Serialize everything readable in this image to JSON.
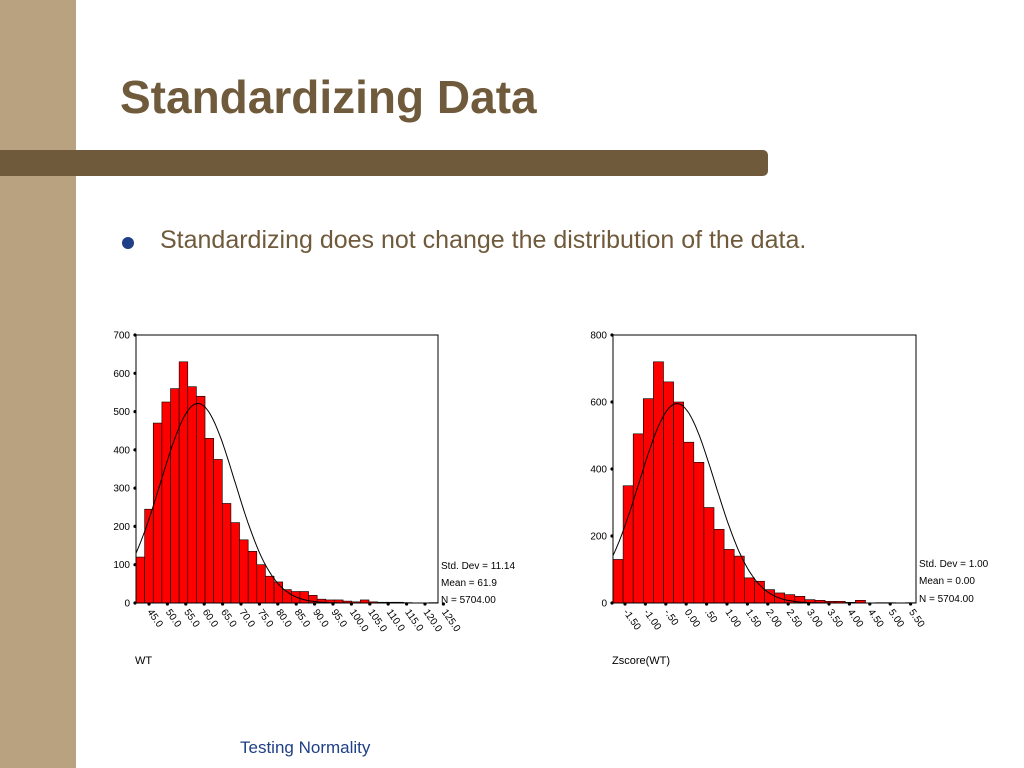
{
  "slide": {
    "title": "Standardizing Data",
    "bullet": "Standardizing does not change the distribution of the data.",
    "footer": "Testing Normality",
    "colors": {
      "left_bar": "#b9a27f",
      "accent": "#705a3c",
      "bullet": "#1f3f86",
      "bars": "#ff0000"
    }
  },
  "chart_data": [
    {
      "type": "bar",
      "subtype": "histogram",
      "xlabel": "WT",
      "ylim": [
        0,
        700
      ],
      "yticks": [
        0,
        100,
        200,
        300,
        400,
        500,
        600,
        700
      ],
      "xtick_labels": [
        "45.0",
        "50.0",
        "55.0",
        "60.0",
        "65.0",
        "70.0",
        "75.0",
        "80.0",
        "85.0",
        "90.0",
        "95.0",
        "100.0",
        "105.0",
        "110.0",
        "115.0",
        "120.0",
        "125.0"
      ],
      "values": [
        120,
        245,
        470,
        525,
        560,
        630,
        565,
        540,
        430,
        375,
        260,
        210,
        165,
        135,
        100,
        70,
        55,
        35,
        30,
        30,
        20,
        10,
        8,
        8,
        5,
        3,
        8,
        3,
        2,
        2,
        2,
        1,
        0,
        0,
        1
      ],
      "stats": [
        "Std. Dev = 11.14",
        "Mean = 61.9",
        "N = 5704.00"
      ],
      "normal_curve": true
    },
    {
      "type": "bar",
      "subtype": "histogram",
      "xlabel": "Zscore(WT)",
      "ylim": [
        0,
        800
      ],
      "yticks": [
        0,
        200,
        400,
        600,
        800
      ],
      "xtick_labels": [
        "-1.50",
        "-1.00",
        "-.50",
        "0.00",
        ".50",
        "1.00",
        "1.50",
        "2.00",
        "2.50",
        "3.00",
        "3.50",
        "4.00",
        "4.50",
        "5.00",
        "5.50"
      ],
      "values": [
        130,
        350,
        505,
        610,
        720,
        660,
        600,
        480,
        420,
        285,
        220,
        160,
        140,
        75,
        65,
        40,
        30,
        25,
        20,
        10,
        8,
        5,
        5,
        2,
        8,
        0,
        1,
        1,
        0,
        1
      ],
      "stats": [
        "Std. Dev = 1.00",
        "Mean = 0.00",
        "N = 5704.00"
      ],
      "normal_curve": true
    }
  ]
}
